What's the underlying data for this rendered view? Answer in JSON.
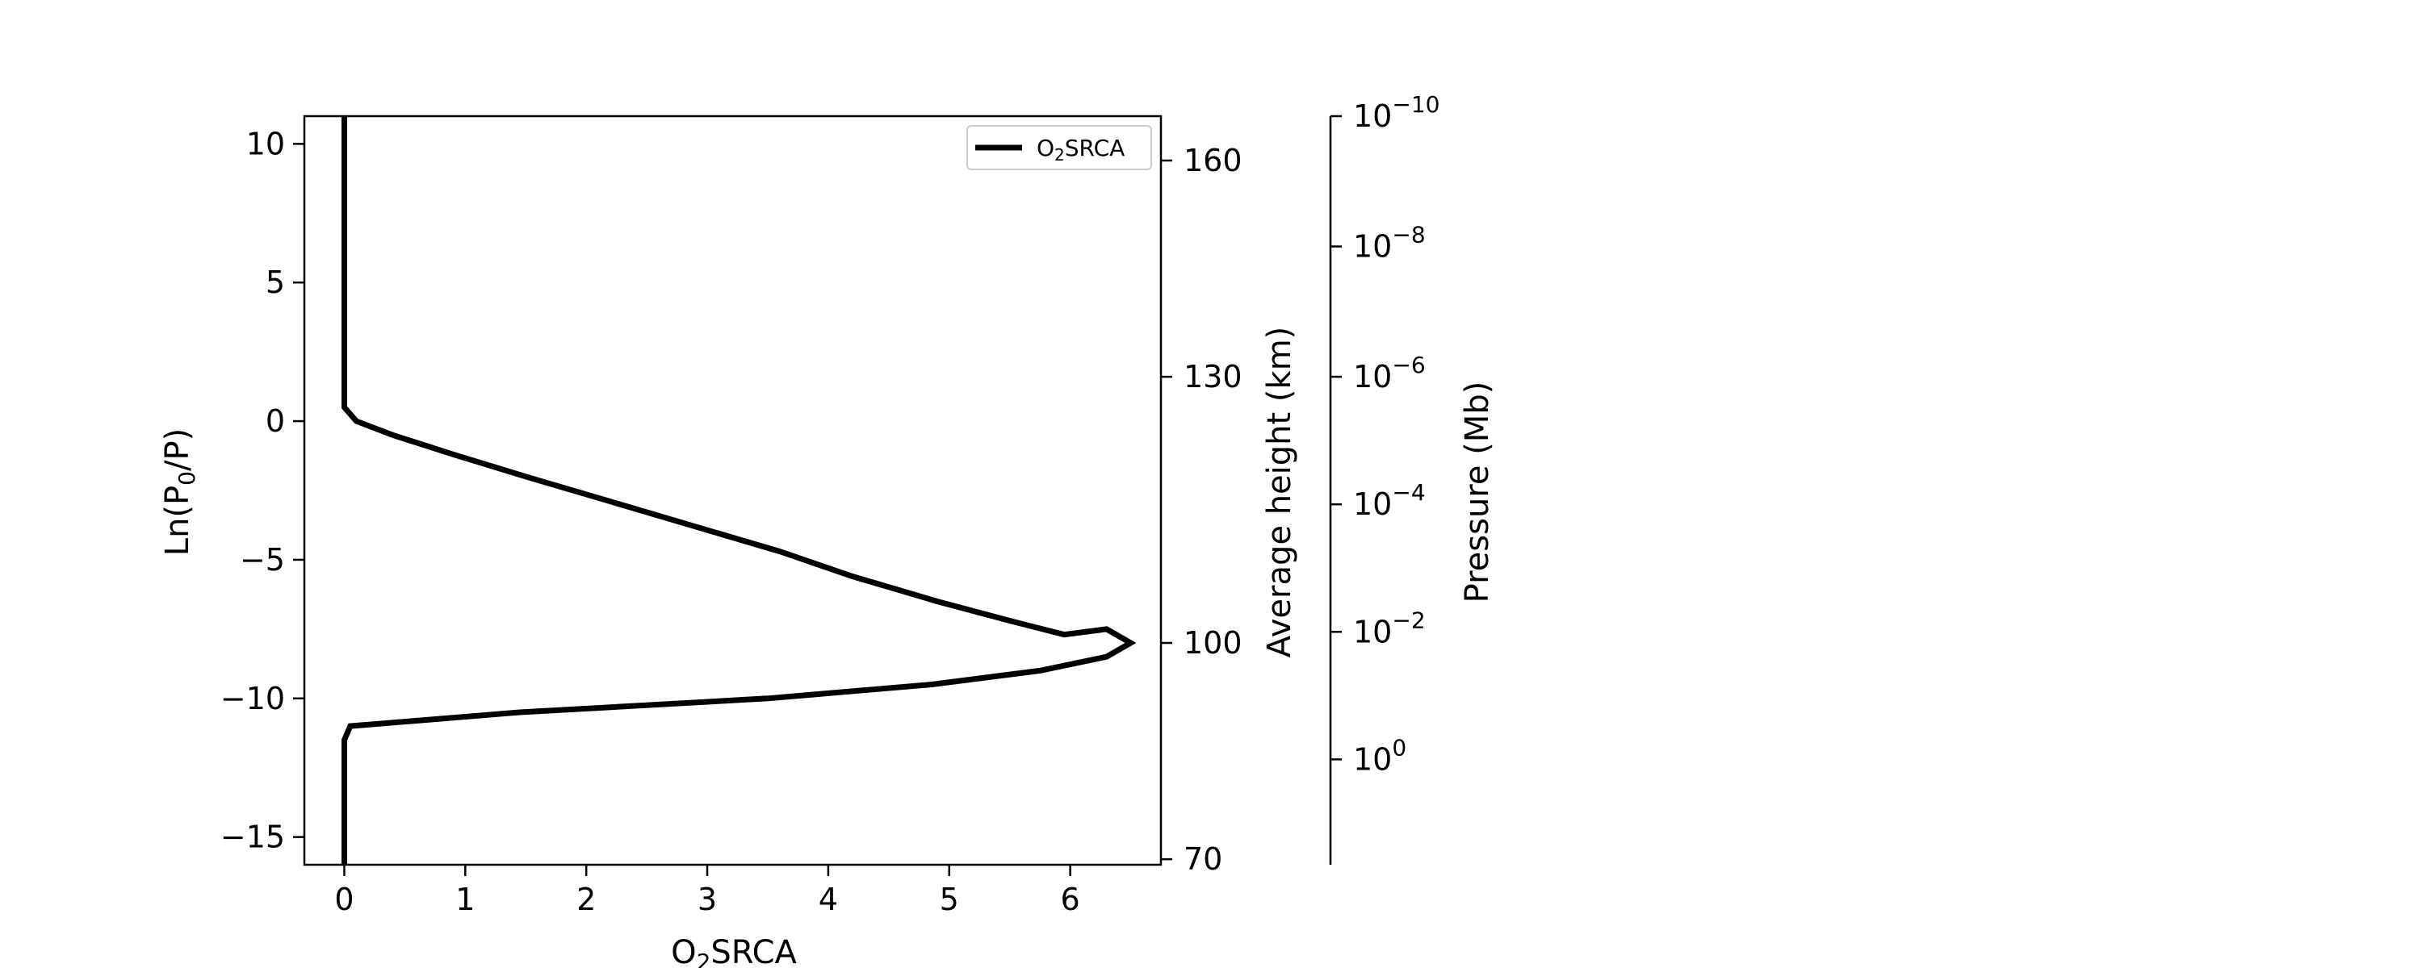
{
  "chart_data": {
    "type": "line",
    "xlabel": {
      "base": "O",
      "sub": "2",
      "rest": "SRCA"
    },
    "ylabel": {
      "pre": "Ln(P",
      "sub": "0",
      "post": "/P)"
    },
    "right_label_1": "Average height (km)",
    "right_label_2": "Pressure (Mb)",
    "xlim": [
      -0.33,
      6.75
    ],
    "ylim": [
      -16,
      11
    ],
    "x_ticks": [
      0,
      1,
      2,
      3,
      4,
      5,
      6
    ],
    "x_tick_labels": [
      "0",
      "1",
      "2",
      "3",
      "4",
      "5",
      "6"
    ],
    "y_ticks": [
      10,
      5,
      0,
      -5,
      -10,
      -15
    ],
    "y_tick_labels": [
      "10",
      "5",
      "0",
      "−5",
      "−10",
      "−15"
    ],
    "height_ticks": [
      {
        "y": 9.4,
        "label": "160"
      },
      {
        "y": 1.6,
        "label": "130"
      },
      {
        "y": -8.0,
        "label": "100"
      },
      {
        "y": -15.8,
        "label": "70"
      }
    ],
    "pressure_ticks": [
      {
        "y": 11.0,
        "base": "10",
        "exp": "−10"
      },
      {
        "y": 6.3,
        "base": "10",
        "exp": "−8"
      },
      {
        "y": 1.6,
        "base": "10",
        "exp": "−6"
      },
      {
        "y": -3.0,
        "base": "10",
        "exp": "−4"
      },
      {
        "y": -7.6,
        "base": "10",
        "exp": "−2"
      },
      {
        "y": -12.2,
        "base": "10",
        "exp": "0"
      }
    ],
    "legend": {
      "position": "top-right",
      "label_base": "O",
      "label_sub": "2",
      "label_rest": "SRCA"
    },
    "series": [
      {
        "name": "O2SRCA",
        "color": "#000000",
        "points": [
          [
            0.0,
            11.0
          ],
          [
            0.0,
            0.5
          ],
          [
            0.1,
            0.0
          ],
          [
            0.4,
            -0.5
          ],
          [
            0.9,
            -1.2
          ],
          [
            1.5,
            -2.0
          ],
          [
            2.2,
            -2.9
          ],
          [
            2.9,
            -3.8
          ],
          [
            3.6,
            -4.7
          ],
          [
            4.2,
            -5.6
          ],
          [
            4.9,
            -6.5
          ],
          [
            5.5,
            -7.2
          ],
          [
            5.95,
            -7.7
          ],
          [
            6.3,
            -7.5
          ],
          [
            6.5,
            -8.0
          ],
          [
            6.3,
            -8.5
          ],
          [
            5.75,
            -9.0
          ],
          [
            4.85,
            -9.5
          ],
          [
            3.5,
            -10.0
          ],
          [
            1.45,
            -10.5
          ],
          [
            0.05,
            -11.0
          ],
          [
            0.0,
            -11.5
          ],
          [
            0.0,
            -16.0
          ]
        ]
      }
    ]
  }
}
